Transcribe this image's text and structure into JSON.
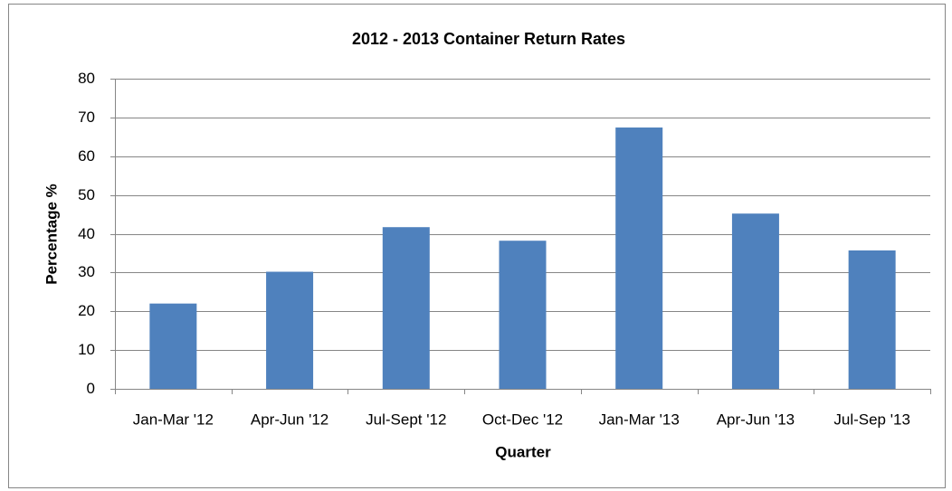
{
  "chart_data": {
    "type": "bar",
    "title": "2012 - 2013 Container Return Rates",
    "x_label": "Quarter",
    "y_label": "Percentage %",
    "categories": [
      "Jan-Mar '12",
      "Apr-Jun '12",
      "Jul-Sept '12",
      "Oct-Dec '12",
      "Jan-Mar '13",
      "Apr-Jun '13",
      "Jul-Sep '13"
    ],
    "values": [
      22,
      30.2,
      41.7,
      38.2,
      67.4,
      45.2,
      35.7
    ],
    "color": "#4f81bd",
    "ylim": [
      0,
      80
    ],
    "yticks": [
      0,
      10,
      20,
      30,
      40,
      50,
      60,
      70,
      80
    ],
    "grid": true
  }
}
